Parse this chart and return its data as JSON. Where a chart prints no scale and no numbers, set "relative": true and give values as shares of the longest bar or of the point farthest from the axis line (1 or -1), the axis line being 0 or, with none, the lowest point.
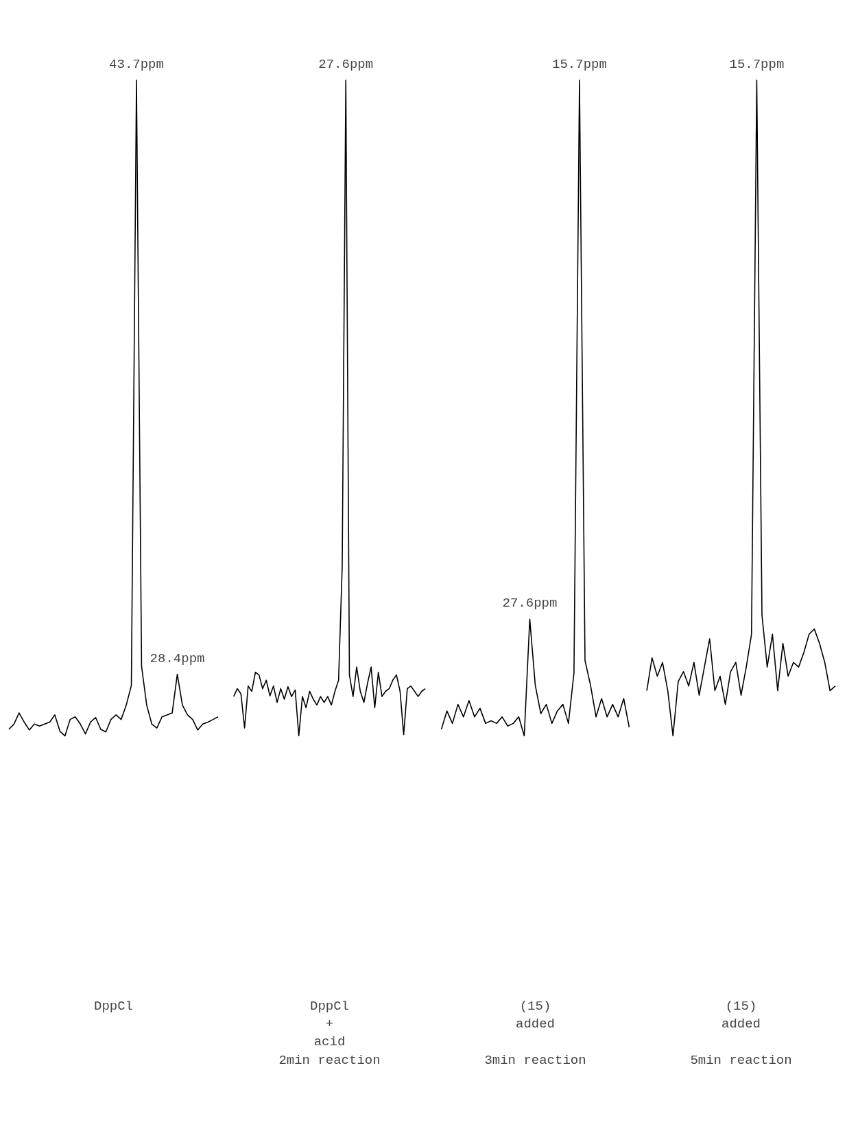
{
  "chart_data": [
    {
      "type": "line",
      "relative": true,
      "grid": false,
      "marker": "none",
      "line_style": "solid",
      "xlabel": "DppCl",
      "categories": [
        null,
        null,
        null,
        null,
        null,
        null,
        null,
        null,
        null,
        null,
        null,
        null,
        null,
        null,
        null,
        null,
        null,
        null,
        null,
        null,
        null,
        null,
        null,
        null,
        null,
        null,
        null,
        null,
        null,
        null,
        null,
        null,
        null,
        null,
        null,
        null,
        null,
        null,
        null,
        null,
        null,
        null
      ],
      "series": [
        {
          "color": "#000000",
          "values": [
            0.01,
            0.018,
            0.035,
            0.021,
            0.009,
            0.018,
            0.015,
            0.018,
            0.021,
            0.032,
            0.007,
            0,
            0.025,
            0.029,
            0.018,
            0.003,
            0.021,
            0.028,
            0.01,
            0.006,
            0.025,
            0.032,
            0.025,
            0.047,
            0.077,
            1,
            0.106,
            0.047,
            0.018,
            0.012,
            0.029,
            0.032,
            0.035,
            0.094,
            0.047,
            0.032,
            0.025,
            0.009,
            0.018,
            0.021,
            0.025,
            0.029
          ]
        }
      ],
      "annotations": [
        {
          "text": "43.7ppm",
          "y": 1
        },
        {
          "text": "28.4ppm",
          "y": 0.094
        }
      ]
    },
    {
      "type": "line",
      "relative": true,
      "grid": false,
      "marker": "none",
      "line_style": "solid",
      "xlabel": "DppCl\n+\nacid\n2min reaction",
      "categories": [
        null,
        null,
        null,
        null,
        null,
        null,
        null,
        null,
        null,
        null,
        null,
        null,
        null,
        null,
        null,
        null,
        null,
        null,
        null,
        null,
        null,
        null,
        null,
        null,
        null,
        null,
        null,
        null,
        null,
        null,
        null,
        null,
        null,
        null,
        null,
        null,
        null,
        null,
        null,
        null,
        null,
        null,
        null,
        null,
        null,
        null,
        null,
        null,
        null,
        null,
        null,
        null,
        null,
        null
      ],
      "series": [
        {
          "color": "#000000",
          "values": [
            0.06,
            0.072,
            0.064,
            0.012,
            0.076,
            0.068,
            0.097,
            0.093,
            0.072,
            0.085,
            0.061,
            0.076,
            0.051,
            0.072,
            0.056,
            0.075,
            0.06,
            0.07,
            0,
            0.06,
            0.043,
            0.068,
            0.056,
            0.047,
            0.06,
            0.051,
            0.06,
            0.047,
            0.068,
            0.085,
            0.258,
            1,
            0.093,
            0.06,
            0.105,
            0.068,
            0.051,
            0.08,
            0.105,
            0.043,
            0.097,
            0.06,
            0.068,
            0.072,
            0.085,
            0.093,
            0.068,
            0.002,
            0.072,
            0.076,
            0.068,
            0.06,
            0.068,
            0.072
          ]
        }
      ],
      "annotations": [
        {
          "text": "27.6ppm",
          "y": 1
        }
      ]
    },
    {
      "type": "line",
      "relative": true,
      "grid": false,
      "marker": "none",
      "line_style": "solid",
      "xlabel": "(15)\nadded\n\n3min reaction",
      "categories": [
        null,
        null,
        null,
        null,
        null,
        null,
        null,
        null,
        null,
        null,
        null,
        null,
        null,
        null,
        null,
        null,
        null,
        null,
        null,
        null,
        null,
        null,
        null,
        null,
        null,
        null,
        null,
        null,
        null,
        null,
        null,
        null,
        null,
        null,
        null
      ],
      "series": [
        {
          "color": "#000000",
          "values": [
            0.01,
            0.038,
            0.019,
            0.048,
            0.029,
            0.054,
            0.029,
            0.042,
            0.019,
            0.023,
            0.019,
            0.029,
            0.015,
            0.019,
            0.029,
            0,
            0.178,
            0.077,
            0.034,
            0.048,
            0.019,
            0.038,
            0.048,
            0.019,
            0.096,
            1,
            0.115,
            0.077,
            0.029,
            0.057,
            0.029,
            0.048,
            0.029,
            0.057,
            0.013
          ]
        }
      ],
      "annotations": [
        {
          "text": "27.6ppm",
          "y": 0.178
        },
        {
          "text": "15.7ppm",
          "y": 1
        }
      ]
    },
    {
      "type": "line",
      "relative": true,
      "grid": false,
      "marker": "none",
      "line_style": "solid",
      "xlabel": "(15)\nadded\n\n5min reaction",
      "categories": [
        null,
        null,
        null,
        null,
        null,
        null,
        null,
        null,
        null,
        null,
        null,
        null,
        null,
        null,
        null,
        null,
        null,
        null,
        null,
        null,
        null,
        null,
        null,
        null,
        null,
        null,
        null,
        null,
        null,
        null,
        null,
        null,
        null,
        null,
        null,
        null,
        null
      ],
      "series": [
        {
          "color": "#000000",
          "values": [
            0.069,
            0.119,
            0.091,
            0.112,
            0.069,
            0,
            0.083,
            0.098,
            0.076,
            0.112,
            0.062,
            0.105,
            0.148,
            0.069,
            0.091,
            0.048,
            0.098,
            0.112,
            0.062,
            0.105,
            0.155,
            1,
            0.184,
            0.105,
            0.155,
            0.069,
            0.141,
            0.091,
            0.112,
            0.105,
            0.127,
            0.155,
            0.163,
            0.141,
            0.112,
            0.069,
            0.076
          ]
        }
      ],
      "annotations": [
        {
          "text": "15.7ppm",
          "y": 1
        }
      ]
    }
  ]
}
